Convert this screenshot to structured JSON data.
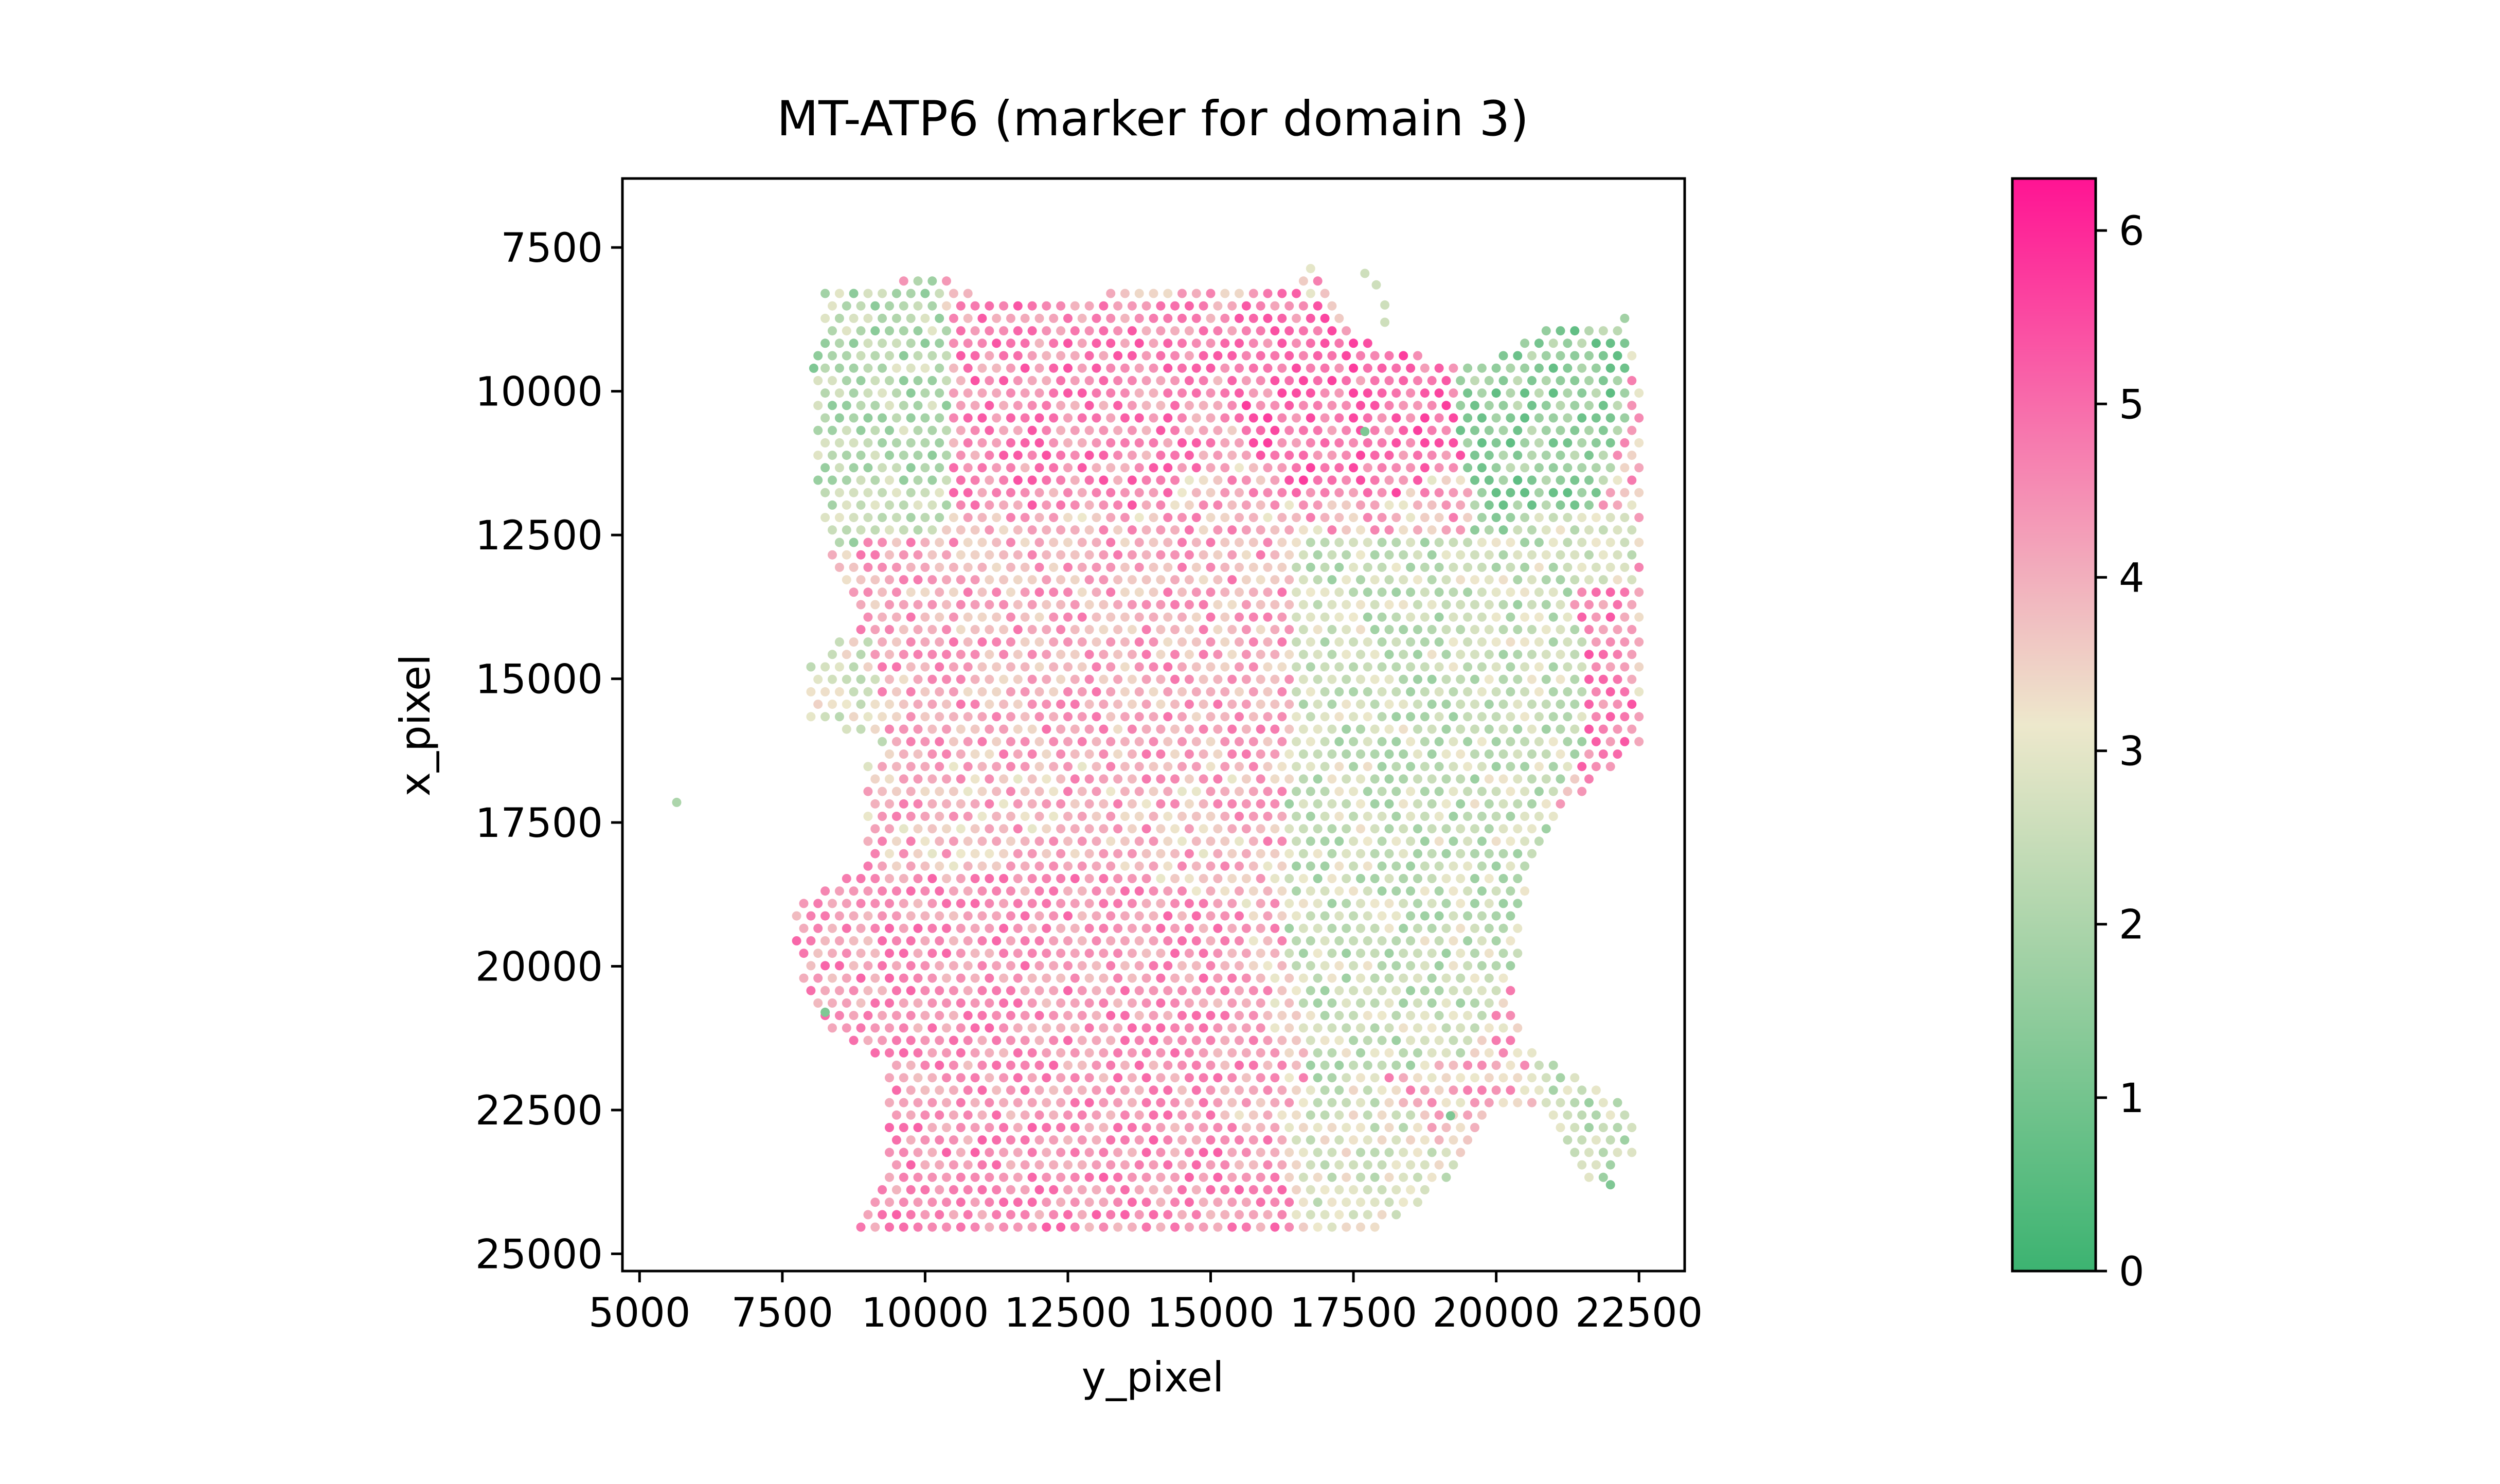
{
  "chart_data": {
    "type": "scatter",
    "title": "MT-ATP6 (marker for domain 3)",
    "xlabel": "y_pixel",
    "ylabel": "x_pixel",
    "xlim": [
      4700,
      23300
    ],
    "ylim": [
      25300,
      6300
    ],
    "y_inverted": true,
    "x_ticks": [
      5000,
      7500,
      10000,
      12500,
      15000,
      17500,
      20000,
      22500
    ],
    "x_tick_labels": [
      "5000",
      "7500",
      "10000",
      "12500",
      "15000",
      "17500",
      "20000",
      "22500"
    ],
    "y_ticks": [
      7500,
      10000,
      12500,
      15000,
      17500,
      20000,
      22500,
      25000
    ],
    "y_tick_labels": [
      "7500",
      "10000",
      "12500",
      "15000",
      "17500",
      "20000",
      "22500",
      "25000"
    ],
    "grid": false,
    "marker": "circle",
    "colorbar": {
      "min": 0,
      "max": 6.3,
      "ticks": [
        0,
        1,
        2,
        3,
        4,
        5,
        6
      ],
      "tick_labels": [
        "0",
        "1",
        "2",
        "3",
        "4",
        "5",
        "6"
      ],
      "colors": [
        "#3cb371",
        "#ede8cc",
        "#ff1493"
      ],
      "color_positions": [
        0,
        0.5,
        1
      ]
    },
    "tissue_outline": [
      [
        8200,
        8300
      ],
      [
        9400,
        8100
      ],
      [
        10400,
        7950
      ],
      [
        11000,
        8350
      ],
      [
        13000,
        8300
      ],
      [
        15000,
        8250
      ],
      [
        16300,
        8200
      ],
      [
        16800,
        7800
      ],
      [
        17200,
        8600
      ],
      [
        17900,
        9300
      ],
      [
        18800,
        9400
      ],
      [
        19800,
        9600
      ],
      [
        20700,
        8900
      ],
      [
        22300,
        8700
      ],
      [
        22600,
        10200
      ],
      [
        22600,
        12500
      ],
      [
        22500,
        16200
      ],
      [
        21600,
        16800
      ],
      [
        20600,
        18400
      ],
      [
        20300,
        20300
      ],
      [
        20500,
        21400
      ],
      [
        21400,
        21900
      ],
      [
        22400,
        22500
      ],
      [
        22400,
        23300
      ],
      [
        21700,
        23900
      ],
      [
        20900,
        22500
      ],
      [
        20100,
        22400
      ],
      [
        19400,
        23500
      ],
      [
        18600,
        24200
      ],
      [
        17900,
        24550
      ],
      [
        16000,
        24650
      ],
      [
        14000,
        24650
      ],
      [
        12000,
        24650
      ],
      [
        10000,
        24650
      ],
      [
        8600,
        24600
      ],
      [
        9300,
        23500
      ],
      [
        9300,
        22300
      ],
      [
        9300,
        21600
      ],
      [
        8100,
        21000
      ],
      [
        7800,
        20200
      ],
      [
        7700,
        19000
      ],
      [
        8200,
        18500
      ],
      [
        8900,
        18400
      ],
      [
        8900,
        16400
      ],
      [
        9400,
        16300
      ],
      [
        9000,
        16000
      ],
      [
        8000,
        15700
      ],
      [
        8000,
        14700
      ],
      [
        8700,
        14100
      ],
      [
        8900,
        13800
      ],
      [
        8300,
        13200
      ],
      [
        8200,
        12000
      ],
      [
        8000,
        11200
      ],
      [
        8100,
        9700
      ]
    ],
    "tissue_holes": [
      [
        [
          17800,
          12600
        ],
        [
          19600,
          12500
        ],
        [
          21000,
          12300
        ],
        [
          21600,
          14200
        ],
        [
          21700,
          16000
        ],
        [
          20600,
          18400
        ],
        [
          20300,
          20300
        ],
        [
          19300,
          21300
        ],
        [
          17700,
          22000
        ],
        [
          16900,
          22300
        ],
        [
          16200,
          19500
        ],
        [
          16600,
          16000
        ],
        [
          17200,
          14000
        ]
      ]
    ],
    "clusters": [
      {
        "polygon": [
          [
            5900,
            16300
          ],
          [
            6900,
            15500
          ],
          [
            7100,
            17000
          ],
          [
            6600,
            17400
          ],
          [
            5700,
            17100
          ]
        ],
        "value": 5.7,
        "spread": 0.5
      },
      {
        "polygon": [
          [
            10400,
            8300
          ],
          [
            13000,
            8300
          ],
          [
            15500,
            8300
          ],
          [
            15300,
            11000
          ],
          [
            14000,
            12000
          ],
          [
            12000,
            12200
          ],
          [
            10500,
            12000
          ],
          [
            10300,
            10000
          ]
        ],
        "value": 4.6,
        "spread": 0.8
      },
      {
        "polygon": [
          [
            15500,
            8300
          ],
          [
            16600,
            8200
          ],
          [
            17400,
            9000
          ],
          [
            19600,
            9600
          ],
          [
            19500,
            11200
          ],
          [
            18000,
            12000
          ],
          [
            16500,
            11900
          ],
          [
            15500,
            11000
          ]
        ],
        "value": 4.9,
        "spread": 0.8
      },
      {
        "polygon": [
          [
            8200,
            8300
          ],
          [
            10300,
            8000
          ],
          [
            10500,
            9500
          ],
          [
            10400,
            12500
          ],
          [
            9000,
            13000
          ],
          [
            8300,
            12600
          ],
          [
            8000,
            11000
          ],
          [
            8100,
            9700
          ]
        ],
        "value": 2.2,
        "spread": 0.8
      },
      {
        "polygon": [
          [
            19200,
            9700
          ],
          [
            20800,
            8900
          ],
          [
            22300,
            8700
          ],
          [
            22300,
            10500
          ],
          [
            21600,
            12600
          ],
          [
            20300,
            13300
          ],
          [
            19600,
            12500
          ],
          [
            19400,
            11000
          ]
        ],
        "value": 1.5,
        "spread": 0.9
      },
      {
        "polygon": [
          [
            20500,
            12000
          ],
          [
            22500,
            12000
          ],
          [
            22400,
            13300
          ],
          [
            21400,
            13500
          ],
          [
            20600,
            13200
          ]
        ],
        "value": 2.7,
        "spread": 0.6
      },
      {
        "polygon": [
          [
            21400,
            13500
          ],
          [
            22500,
            13300
          ],
          [
            22500,
            16300
          ],
          [
            21600,
            16800
          ],
          [
            21000,
            15500
          ]
        ],
        "value": 4.7,
        "spread": 0.7
      },
      {
        "polygon": [
          [
            8800,
            12600
          ],
          [
            12000,
            12200
          ],
          [
            15000,
            12200
          ],
          [
            16800,
            12400
          ],
          [
            16500,
            15500
          ],
          [
            15500,
            16500
          ],
          [
            12000,
            16500
          ],
          [
            9300,
            16300
          ],
          [
            8900,
            14000
          ]
        ],
        "value": 4.1,
        "spread": 0.8
      },
      {
        "polygon": [
          [
            8000,
            14500
          ],
          [
            9000,
            14200
          ],
          [
            9400,
            16300
          ],
          [
            8900,
            17000
          ],
          [
            8000,
            16500
          ]
        ],
        "value": 2.9,
        "spread": 0.7
      },
      {
        "polygon": [
          [
            16500,
            12400
          ],
          [
            19600,
            12500
          ],
          [
            21000,
            12300
          ],
          [
            21500,
            14200
          ],
          [
            21600,
            16200
          ],
          [
            20800,
            17800
          ],
          [
            20300,
            20300
          ],
          [
            19500,
            21500
          ],
          [
            17700,
            22000
          ],
          [
            16800,
            22300
          ],
          [
            16300,
            19500
          ],
          [
            16400,
            16000
          ]
        ],
        "value": 2.5,
        "spread": 0.8
      },
      {
        "polygon": [
          [
            7700,
            18500
          ],
          [
            9000,
            18300
          ],
          [
            11500,
            18300
          ],
          [
            14000,
            18500
          ],
          [
            15500,
            19000
          ],
          [
            16000,
            21000
          ],
          [
            15800,
            22500
          ],
          [
            14000,
            23000
          ],
          [
            11000,
            23000
          ],
          [
            9300,
            22500
          ],
          [
            9300,
            21600
          ],
          [
            8100,
            21000
          ],
          [
            7700,
            19500
          ]
        ],
        "value": 4.4,
        "spread": 0.7
      },
      {
        "polygon": [
          [
            9300,
            22500
          ],
          [
            14000,
            23000
          ],
          [
            16200,
            23000
          ],
          [
            16500,
            24650
          ],
          [
            12000,
            24700
          ],
          [
            8600,
            24650
          ]
        ],
        "value": 4.5,
        "spread": 0.7
      },
      {
        "polygon": [
          [
            16400,
            22300
          ],
          [
            18000,
            22000
          ],
          [
            19500,
            23600
          ],
          [
            18600,
            24300
          ],
          [
            16800,
            24650
          ],
          [
            16300,
            23800
          ]
        ],
        "value": 2.8,
        "spread": 0.7
      },
      {
        "polygon": [
          [
            20300,
            21200
          ],
          [
            21800,
            21900
          ],
          [
            22500,
            22500
          ],
          [
            22400,
            23300
          ],
          [
            21600,
            23900
          ],
          [
            20800,
            22500
          ]
        ],
        "value": 2.4,
        "spread": 0.7
      }
    ],
    "background_value": 3.9,
    "background_spread": 0.9,
    "spot_spacing": 250,
    "point_count": 2300
  }
}
